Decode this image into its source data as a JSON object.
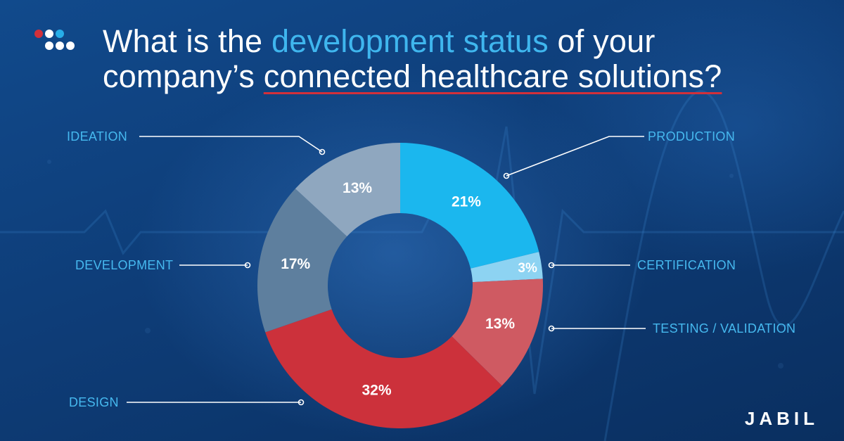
{
  "title": {
    "part1": "What is the ",
    "highlight": "development status",
    "part2": " of your",
    "line2_plain": "company’s ",
    "line2_underlined": "connected healthcare solutions?"
  },
  "brand": {
    "name": "JABIL"
  },
  "colors": {
    "title_text": "#ffffff",
    "highlight": "#3fb6ee",
    "underline": "#d2303a",
    "label_text": "#46b9ef",
    "leader_line": "#ffffff",
    "logo_dot_red": "#d2303a",
    "logo_dot_blue": "#27aee8",
    "logo_dot_white": "#ffffff"
  },
  "chart_data": {
    "type": "pie",
    "donut": true,
    "start": "12 o'clock, clockwise",
    "slices": [
      {
        "label": "PRODUCTION",
        "value": 21,
        "display": "21%",
        "color": "#1bb7ee"
      },
      {
        "label": "CERTIFICATION",
        "value": 3,
        "display": "3%",
        "color": "#8dd3f2"
      },
      {
        "label": "TESTING / VALIDATION",
        "value": 13,
        "display": "13%",
        "color": "#cf5a62"
      },
      {
        "label": "DESIGN",
        "value": 32,
        "display": "32%",
        "color": "#cc313b"
      },
      {
        "label": "DEVELOPMENT",
        "value": 17,
        "display": "17%",
        "color": "#5e7f9e"
      },
      {
        "label": "IDEATION",
        "value": 13,
        "display": "13%",
        "color": "#8fa7bf"
      }
    ]
  }
}
